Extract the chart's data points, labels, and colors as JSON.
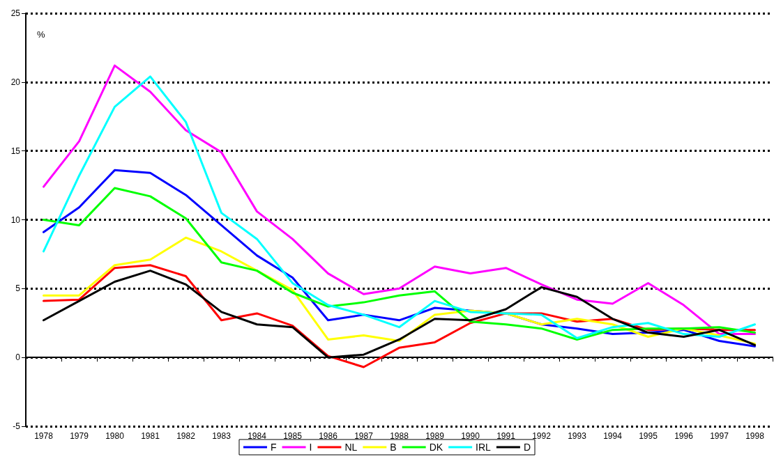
{
  "chart_data": {
    "type": "line",
    "ylabel": "%",
    "categories": [
      "1978",
      "1979",
      "1980",
      "1981",
      "1982",
      "1983",
      "1984",
      "1985",
      "1986",
      "1987",
      "1988",
      "1989",
      "1990",
      "1991",
      "1992",
      "1993",
      "1994",
      "1995",
      "1996",
      "1997",
      "1998"
    ],
    "series": [
      {
        "name": "F",
        "color": "#0000ff",
        "values": [
          9.1,
          10.9,
          13.6,
          13.4,
          11.8,
          9.6,
          7.4,
          5.8,
          2.7,
          3.1,
          2.7,
          3.6,
          3.4,
          3.2,
          2.4,
          2.1,
          1.7,
          1.8,
          2.0,
          1.2,
          0.8
        ]
      },
      {
        "name": "I",
        "color": "#ff00ff",
        "values": [
          12.4,
          15.7,
          21.2,
          19.3,
          16.5,
          14.9,
          10.6,
          8.6,
          6.1,
          4.6,
          5.0,
          6.6,
          6.1,
          6.5,
          5.3,
          4.2,
          3.9,
          5.4,
          3.8,
          1.7,
          1.7
        ]
      },
      {
        "name": "NL",
        "color": "#ff0000",
        "values": [
          4.1,
          4.2,
          6.5,
          6.7,
          5.9,
          2.7,
          3.2,
          2.3,
          0.1,
          -0.7,
          0.7,
          1.1,
          2.5,
          3.2,
          3.2,
          2.6,
          2.8,
          2.0,
          2.1,
          2.0,
          2.0
        ]
      },
      {
        "name": "B",
        "color": "#ffff00",
        "values": [
          4.5,
          4.5,
          6.7,
          7.1,
          8.7,
          7.7,
          6.3,
          4.9,
          1.3,
          1.6,
          1.2,
          3.1,
          3.4,
          3.2,
          2.4,
          2.8,
          2.4,
          1.5,
          2.1,
          1.6,
          1.0
        ]
      },
      {
        "name": "DK",
        "color": "#00ff00",
        "values": [
          10.0,
          9.6,
          12.3,
          11.7,
          10.1,
          6.9,
          6.3,
          4.7,
          3.7,
          4.0,
          4.5,
          4.8,
          2.6,
          2.4,
          2.1,
          1.3,
          2.0,
          2.1,
          2.1,
          2.2,
          1.8
        ]
      },
      {
        "name": "IRL",
        "color": "#00ffff",
        "values": [
          7.7,
          13.2,
          18.2,
          20.4,
          17.1,
          10.5,
          8.6,
          5.4,
          3.8,
          3.1,
          2.2,
          4.1,
          3.3,
          3.2,
          3.1,
          1.4,
          2.2,
          2.5,
          1.7,
          1.5,
          2.4
        ]
      },
      {
        "name": "D",
        "color": "#000000",
        "values": [
          2.7,
          4.1,
          5.5,
          6.3,
          5.3,
          3.3,
          2.4,
          2.2,
          0.0,
          0.2,
          1.3,
          2.8,
          2.7,
          3.5,
          5.1,
          4.4,
          2.8,
          1.8,
          1.5,
          2.0,
          0.9
        ]
      }
    ],
    "ylim": [
      -5,
      25
    ],
    "yticks": [
      -5,
      0,
      5,
      10,
      15,
      20,
      25
    ],
    "grid": "y",
    "legend": "bottom",
    "marker": "none",
    "line_style": "solid"
  }
}
